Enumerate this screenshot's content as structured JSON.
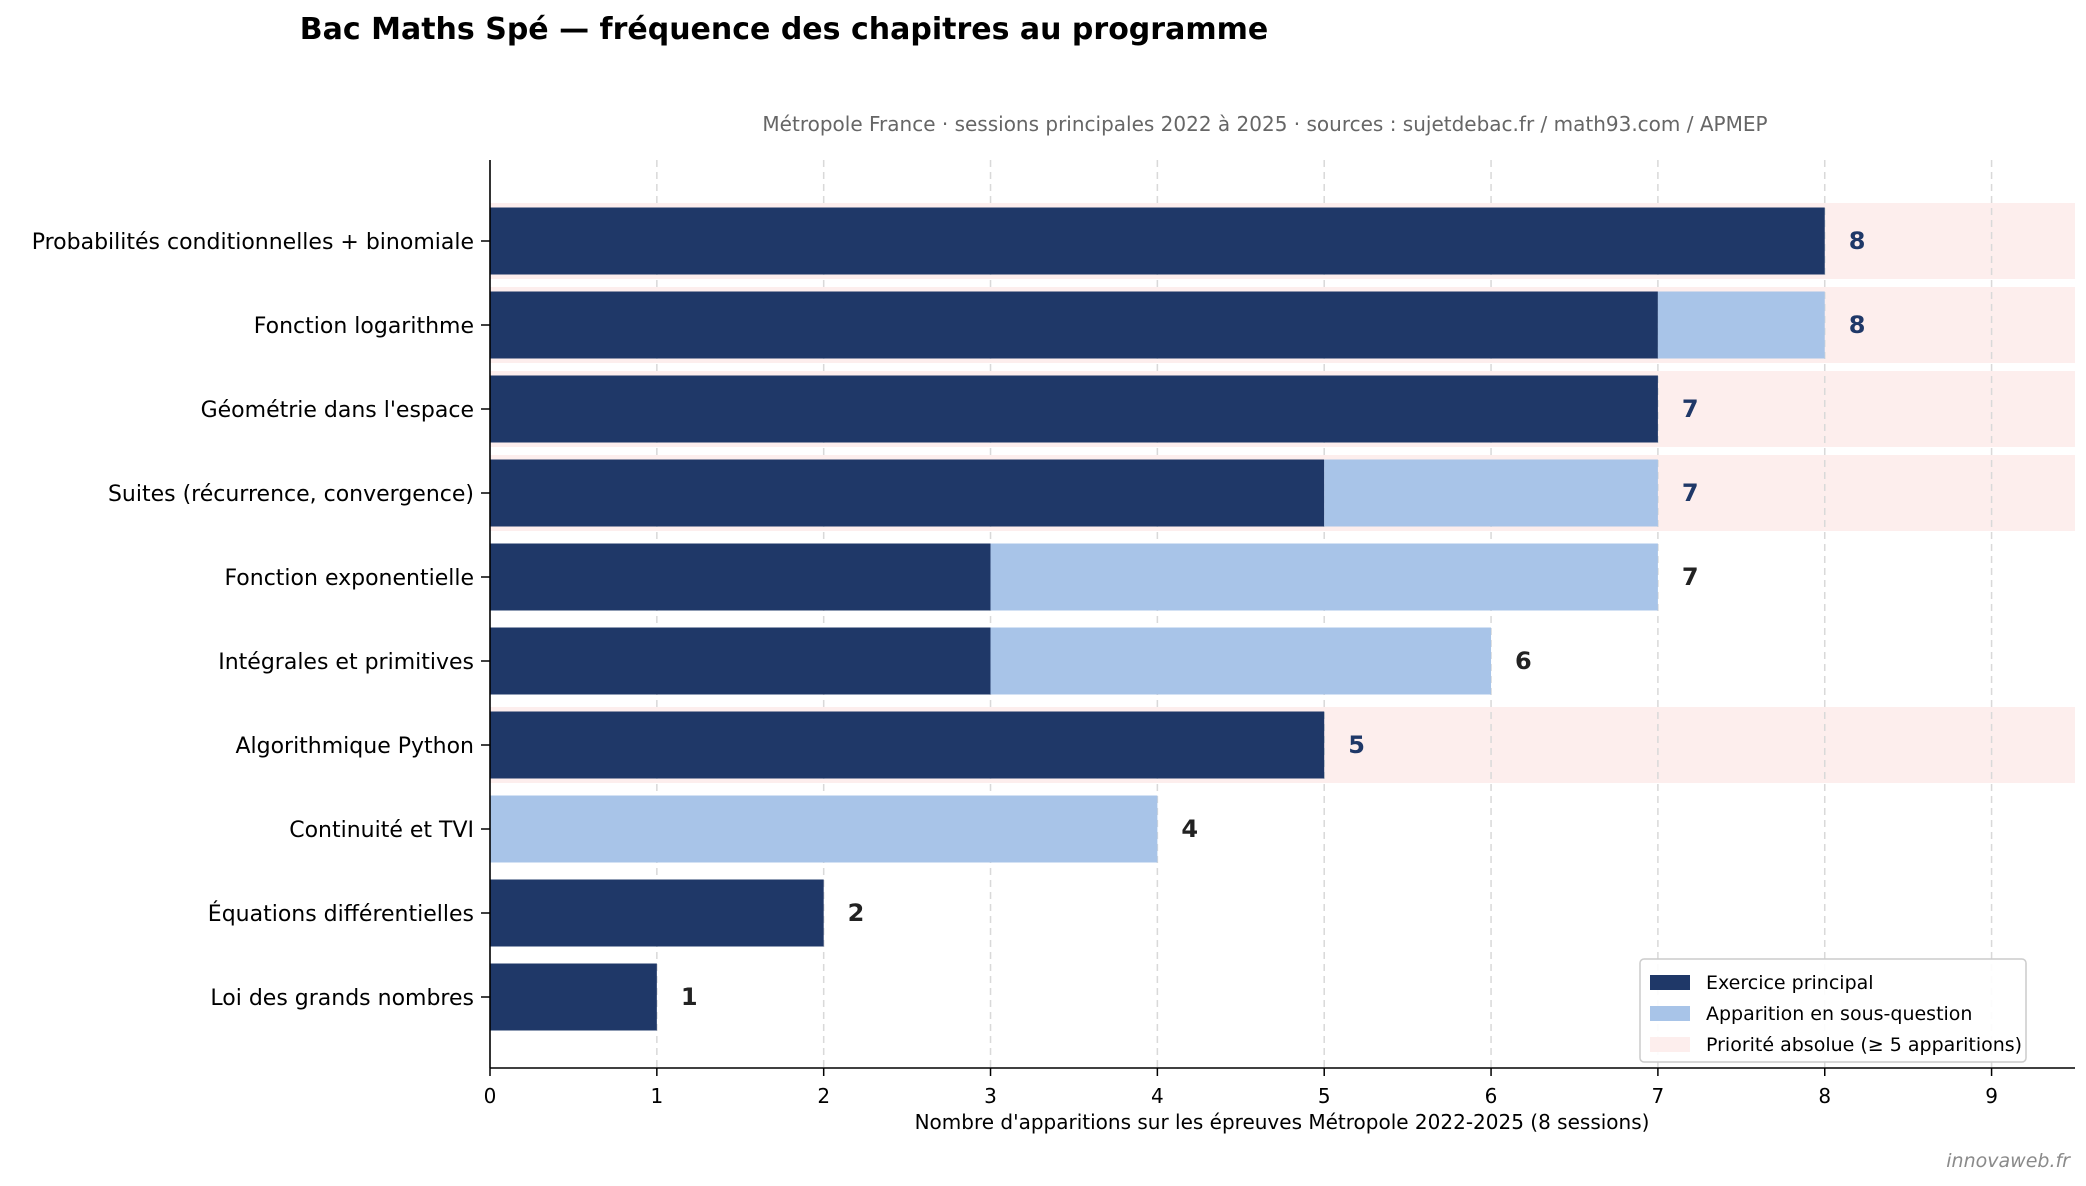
{
  "chart_data": {
    "type": "bar",
    "orientation": "horizontal",
    "stacked": true,
    "title": "Bac Maths Spé — fréquence des chapitres au programme",
    "subtitle": "Métropole France · sessions principales 2022 à 2025 · sources : sujetdebac.fr / math93.com / APMEP",
    "xlabel": "Nombre d'apparitions sur les épreuves Métropole 2022-2025 (8 sessions)",
    "ylabel": "",
    "xlim": [
      0,
      9.5
    ],
    "xticks": [
      0,
      1,
      2,
      3,
      4,
      5,
      6,
      7,
      8,
      9
    ],
    "grid": "x, dashed",
    "legend_position": "lower-right",
    "categories": [
      "Probabilités conditionnelles + binomiale",
      "Fonction logarithme",
      "Géométrie dans l'espace",
      "Suites (récurrence, convergence)",
      "Fonction exponentielle",
      "Intégrales et primitives",
      "Algorithmique Python",
      "Continuité et TVI",
      "Équations différentielles",
      "Loi des grands nombres"
    ],
    "series": [
      {
        "name": "Exercice principal",
        "color": "#1f3868",
        "values": [
          8,
          7,
          7,
          5,
          3,
          3,
          5,
          0,
          2,
          1
        ]
      },
      {
        "name": "Apparition en sous-question",
        "color": "#a8c4e8",
        "values": [
          0,
          1,
          0,
          2,
          4,
          3,
          0,
          4,
          0,
          0
        ]
      }
    ],
    "totals": [
      8,
      8,
      7,
      7,
      7,
      6,
      5,
      4,
      2,
      1
    ],
    "priority_band": {
      "name": "Priorité absolue (≥ 5 apparitions)",
      "color": "#fdeeed",
      "rows": [
        true,
        true,
        true,
        true,
        false,
        false,
        true,
        false,
        false,
        false
      ]
    },
    "total_label_colors": {
      "priority": "#1f3868",
      "other": "#222222"
    }
  },
  "watermark": "innovaweb.fr"
}
